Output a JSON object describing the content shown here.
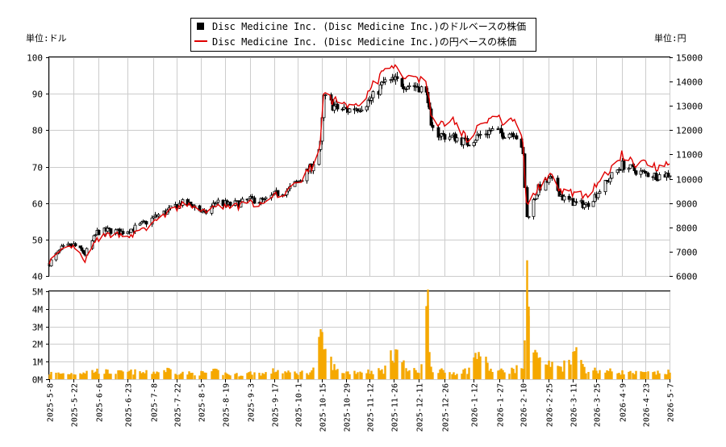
{
  "chart_data": [
    {
      "type": "candlestick",
      "title": "",
      "y_left_label": "単位:ドル",
      "y_right_label": "単位:円",
      "ylim_left": [
        40,
        100
      ],
      "ylim_right": [
        6000,
        15000
      ],
      "left_ticks": [
        40,
        50,
        60,
        70,
        80,
        90,
        100
      ],
      "right_ticks": [
        6000,
        7000,
        8000,
        9000,
        10000,
        11000,
        12000,
        13000,
        14000,
        15000
      ],
      "grid": true,
      "legend_position": "top-center",
      "series": [
        {
          "name": "Disc Medicine Inc. (Disc Medicine Inc.)のドルベースの株価",
          "color": "#000000",
          "style": "candlestick",
          "points": [
            [
              "2025-05-08",
              43.5
            ],
            [
              "2025-05-15",
              47.5
            ],
            [
              "2025-05-22",
              48.5
            ],
            [
              "2025-05-29",
              46.0
            ],
            [
              "2025-06-05",
              52.0
            ],
            [
              "2025-06-12",
              52.5
            ],
            [
              "2025-06-19",
              52.0
            ],
            [
              "2025-06-26",
              53.0
            ],
            [
              "2025-07-03",
              54.5
            ],
            [
              "2025-07-10",
              56.5
            ],
            [
              "2025-07-17",
              58.0
            ],
            [
              "2025-07-24",
              60.0
            ],
            [
              "2025-07-31",
              59.5
            ],
            [
              "2025-08-07",
              57.0
            ],
            [
              "2025-08-14",
              60.5
            ],
            [
              "2025-08-21",
              59.5
            ],
            [
              "2025-08-28",
              60.0
            ],
            [
              "2025-09-04",
              61.0
            ],
            [
              "2025-09-11",
              60.5
            ],
            [
              "2025-09-18",
              62.5
            ],
            [
              "2025-09-25",
              63.5
            ],
            [
              "2025-10-02",
              66.5
            ],
            [
              "2025-10-09",
              70.0
            ],
            [
              "2025-10-14",
              76.0
            ],
            [
              "2025-10-16",
              89.0
            ],
            [
              "2025-10-23",
              86.0
            ],
            [
              "2025-10-30",
              85.5
            ],
            [
              "2025-11-06",
              86.5
            ],
            [
              "2025-11-13",
              88.5
            ],
            [
              "2025-11-20",
              93.0
            ],
            [
              "2025-11-27",
              93.5
            ],
            [
              "2025-12-04",
              92.5
            ],
            [
              "2025-12-11",
              92.0
            ],
            [
              "2025-12-16",
              89.0
            ],
            [
              "2025-12-18",
              80.0
            ],
            [
              "2025-12-25",
              78.5
            ],
            [
              "2026-01-01",
              78.0
            ],
            [
              "2026-01-08",
              76.5
            ],
            [
              "2026-01-15",
              78.5
            ],
            [
              "2026-01-22",
              80.0
            ],
            [
              "2026-01-29",
              79.0
            ],
            [
              "2026-02-05",
              79.5
            ],
            [
              "2026-02-10",
              73.0
            ],
            [
              "2026-02-12",
              56.0
            ],
            [
              "2026-02-19",
              64.0
            ],
            [
              "2026-02-26",
              66.5
            ],
            [
              "2026-03-05",
              61.5
            ],
            [
              "2026-03-12",
              60.0
            ],
            [
              "2026-03-19",
              59.5
            ],
            [
              "2026-03-26",
              63.0
            ],
            [
              "2026-04-02",
              67.0
            ],
            [
              "2026-04-09",
              70.5
            ],
            [
              "2026-04-16",
              69.0
            ],
            [
              "2026-04-23",
              68.0
            ],
            [
              "2026-04-30",
              67.5
            ],
            [
              "2026-05-07",
              68.0
            ]
          ]
        },
        {
          "name": "Disc Medicine Inc. (Disc Medicine Inc.)の円ベースの株価",
          "color": "#e00000",
          "style": "line",
          "axis": "right",
          "points": [
            [
              "2025-05-08",
              6600
            ],
            [
              "2025-05-15",
              7000
            ],
            [
              "2025-05-22",
              7200
            ],
            [
              "2025-05-29",
              6600
            ],
            [
              "2025-06-05",
              7500
            ],
            [
              "2025-06-12",
              7700
            ],
            [
              "2025-06-19",
              7700
            ],
            [
              "2025-06-26",
              7700
            ],
            [
              "2025-07-03",
              7900
            ],
            [
              "2025-07-10",
              8300
            ],
            [
              "2025-07-17",
              8600
            ],
            [
              "2025-07-24",
              8900
            ],
            [
              "2025-07-31",
              8900
            ],
            [
              "2025-08-07",
              8600
            ],
            [
              "2025-08-14",
              8900
            ],
            [
              "2025-08-21",
              8800
            ],
            [
              "2025-08-28",
              8900
            ],
            [
              "2025-09-04",
              9000
            ],
            [
              "2025-09-11",
              8900
            ],
            [
              "2025-09-18",
              9300
            ],
            [
              "2025-09-25",
              9500
            ],
            [
              "2025-10-02",
              9900
            ],
            [
              "2025-10-09",
              10500
            ],
            [
              "2025-10-14",
              11300
            ],
            [
              "2025-10-16",
              13400
            ],
            [
              "2025-10-23",
              13200
            ],
            [
              "2025-10-30",
              13000
            ],
            [
              "2025-11-06",
              13200
            ],
            [
              "2025-11-13",
              13700
            ],
            [
              "2025-11-20",
              14400
            ],
            [
              "2025-11-27",
              14500
            ],
            [
              "2025-12-04",
              14300
            ],
            [
              "2025-12-11",
              14200
            ],
            [
              "2025-12-16",
              13800
            ],
            [
              "2025-12-18",
              12400
            ],
            [
              "2025-12-25",
              12300
            ],
            [
              "2026-01-01",
              12400
            ],
            [
              "2026-01-08",
              11600
            ],
            [
              "2026-01-15",
              12200
            ],
            [
              "2026-01-22",
              12500
            ],
            [
              "2026-01-29",
              12400
            ],
            [
              "2026-02-05",
              12600
            ],
            [
              "2026-02-10",
              11400
            ],
            [
              "2026-02-12",
              9000
            ],
            [
              "2026-02-19",
              9600
            ],
            [
              "2026-02-26",
              10100
            ],
            [
              "2026-03-05",
              9500
            ],
            [
              "2026-03-12",
              9400
            ],
            [
              "2026-03-19",
              9300
            ],
            [
              "2026-03-26",
              9900
            ],
            [
              "2026-04-02",
              10300
            ],
            [
              "2026-04-09",
              11000
            ],
            [
              "2026-04-16",
              10600
            ],
            [
              "2026-04-23",
              10700
            ],
            [
              "2026-04-30",
              10500
            ],
            [
              "2026-05-07",
              10700
            ]
          ]
        }
      ]
    },
    {
      "type": "bar",
      "title": "",
      "ylim": [
        0,
        5000000
      ],
      "y_ticks": [
        0,
        1000000,
        2000000,
        3000000,
        4000000,
        5000000
      ],
      "y_tick_labels": [
        "0M",
        "1M",
        "2M",
        "3M",
        "4M",
        "5M"
      ],
      "grid": true,
      "bar_color": "#f5a800",
      "values_weekly": [
        [
          "2025-05-08",
          350000
        ],
        [
          "2025-05-15",
          320000
        ],
        [
          "2025-05-22",
          340000
        ],
        [
          "2025-05-29",
          420000
        ],
        [
          "2025-06-05",
          480000
        ],
        [
          "2025-06-12",
          400000
        ],
        [
          "2025-06-19",
          380000
        ],
        [
          "2025-06-26",
          420000
        ],
        [
          "2025-07-03",
          360000
        ],
        [
          "2025-07-10",
          430000
        ],
        [
          "2025-07-17",
          550000
        ],
        [
          "2025-07-24",
          350000
        ],
        [
          "2025-07-31",
          330000
        ],
        [
          "2025-08-07",
          360000
        ],
        [
          "2025-08-14",
          450000
        ],
        [
          "2025-08-21",
          280000
        ],
        [
          "2025-08-28",
          260000
        ],
        [
          "2025-09-04",
          380000
        ],
        [
          "2025-09-11",
          300000
        ],
        [
          "2025-09-18",
          520000
        ],
        [
          "2025-09-25",
          360000
        ],
        [
          "2025-10-02",
          380000
        ],
        [
          "2025-10-09",
          420000
        ],
        [
          "2025-10-14",
          2200000
        ],
        [
          "2025-10-16",
          1700000
        ],
        [
          "2025-10-23",
          500000
        ],
        [
          "2025-10-30",
          400000
        ],
        [
          "2025-11-06",
          450000
        ],
        [
          "2025-11-13",
          450000
        ],
        [
          "2025-11-20",
          500000
        ],
        [
          "2025-11-27",
          1700000
        ],
        [
          "2025-12-04",
          500000
        ],
        [
          "2025-12-11",
          450000
        ],
        [
          "2025-12-16",
          4200000
        ],
        [
          "2025-12-18",
          700000
        ],
        [
          "2025-12-25",
          400000
        ],
        [
          "2026-01-01",
          380000
        ],
        [
          "2026-01-08",
          500000
        ],
        [
          "2026-01-15",
          1550000
        ],
        [
          "2026-01-22",
          500000
        ],
        [
          "2026-01-29",
          450000
        ],
        [
          "2026-02-05",
          550000
        ],
        [
          "2026-02-10",
          700000
        ],
        [
          "2026-02-12",
          5000000
        ],
        [
          "2026-02-13",
          3600000
        ],
        [
          "2026-02-19",
          1100000
        ],
        [
          "2026-02-26",
          800000
        ],
        [
          "2026-03-05",
          700000
        ],
        [
          "2026-03-12",
          1600000
        ],
        [
          "2026-03-19",
          550000
        ],
        [
          "2026-03-26",
          500000
        ],
        [
          "2026-04-02",
          450000
        ],
        [
          "2026-04-09",
          400000
        ],
        [
          "2026-04-16",
          350000
        ],
        [
          "2026-04-23",
          350000
        ],
        [
          "2026-04-30",
          350000
        ],
        [
          "2026-05-07",
          400000
        ]
      ]
    }
  ],
  "x_tick_labels": [
    "2025-5-8",
    "2025-5-22",
    "2025-6-6",
    "2025-6-23",
    "2025-7-8",
    "2025-7-22",
    "2025-8-5",
    "2025-8-19",
    "2025-9-3",
    "2025-9-17",
    "2025-10-1",
    "2025-10-15",
    "2025-10-29",
    "2025-11-12",
    "2025-11-26",
    "2025-12-11",
    "2025-12-26",
    "2026-1-12",
    "2026-1-27",
    "2026-2-10",
    "2026-2-25",
    "2026-3-11",
    "2026-3-25",
    "2026-4-9",
    "2026-4-23",
    "2026-5-7"
  ],
  "legend": [
    {
      "label": "Disc Medicine Inc. (Disc Medicine Inc.)のドルベースの株価",
      "marker": "square",
      "color": "#000000"
    },
    {
      "label": "Disc Medicine Inc. (Disc Medicine Inc.)の円ベースの株価",
      "marker": "line",
      "color": "#e00000"
    }
  ]
}
